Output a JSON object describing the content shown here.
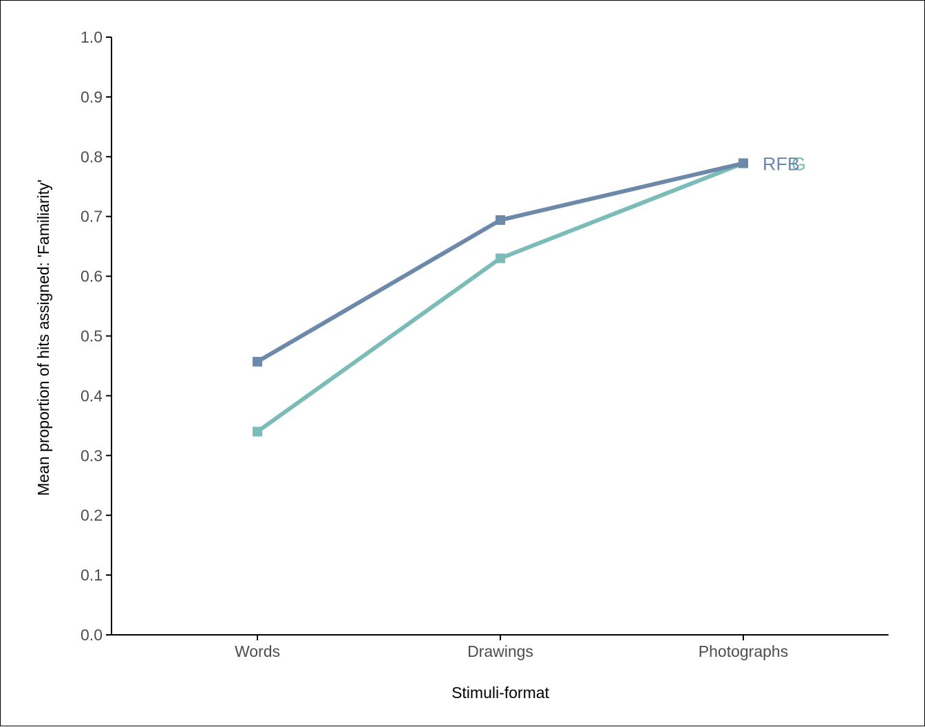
{
  "chart_data": {
    "type": "line",
    "xlabel": "Stimuli-format",
    "ylabel": "Mean proportion of hits assigned:  'Familiarity'",
    "categories": [
      "Words",
      "Drawings",
      "Photographs"
    ],
    "ylim": [
      0.0,
      1.0
    ],
    "yticks": [
      "0.0",
      "0.1",
      "0.2",
      "0.3",
      "0.4",
      "0.5",
      "0.6",
      "0.7",
      "0.8",
      "0.9",
      "1.0"
    ],
    "grid": false,
    "legend": "direct labels at line ends",
    "series": [
      {
        "name": "RFB",
        "values": [
          0.457,
          0.694,
          0.789
        ],
        "color": "#6c89a9"
      },
      {
        "name": "G",
        "values": [
          0.34,
          0.63,
          0.789
        ],
        "color": "#7cbcb8"
      }
    ]
  }
}
